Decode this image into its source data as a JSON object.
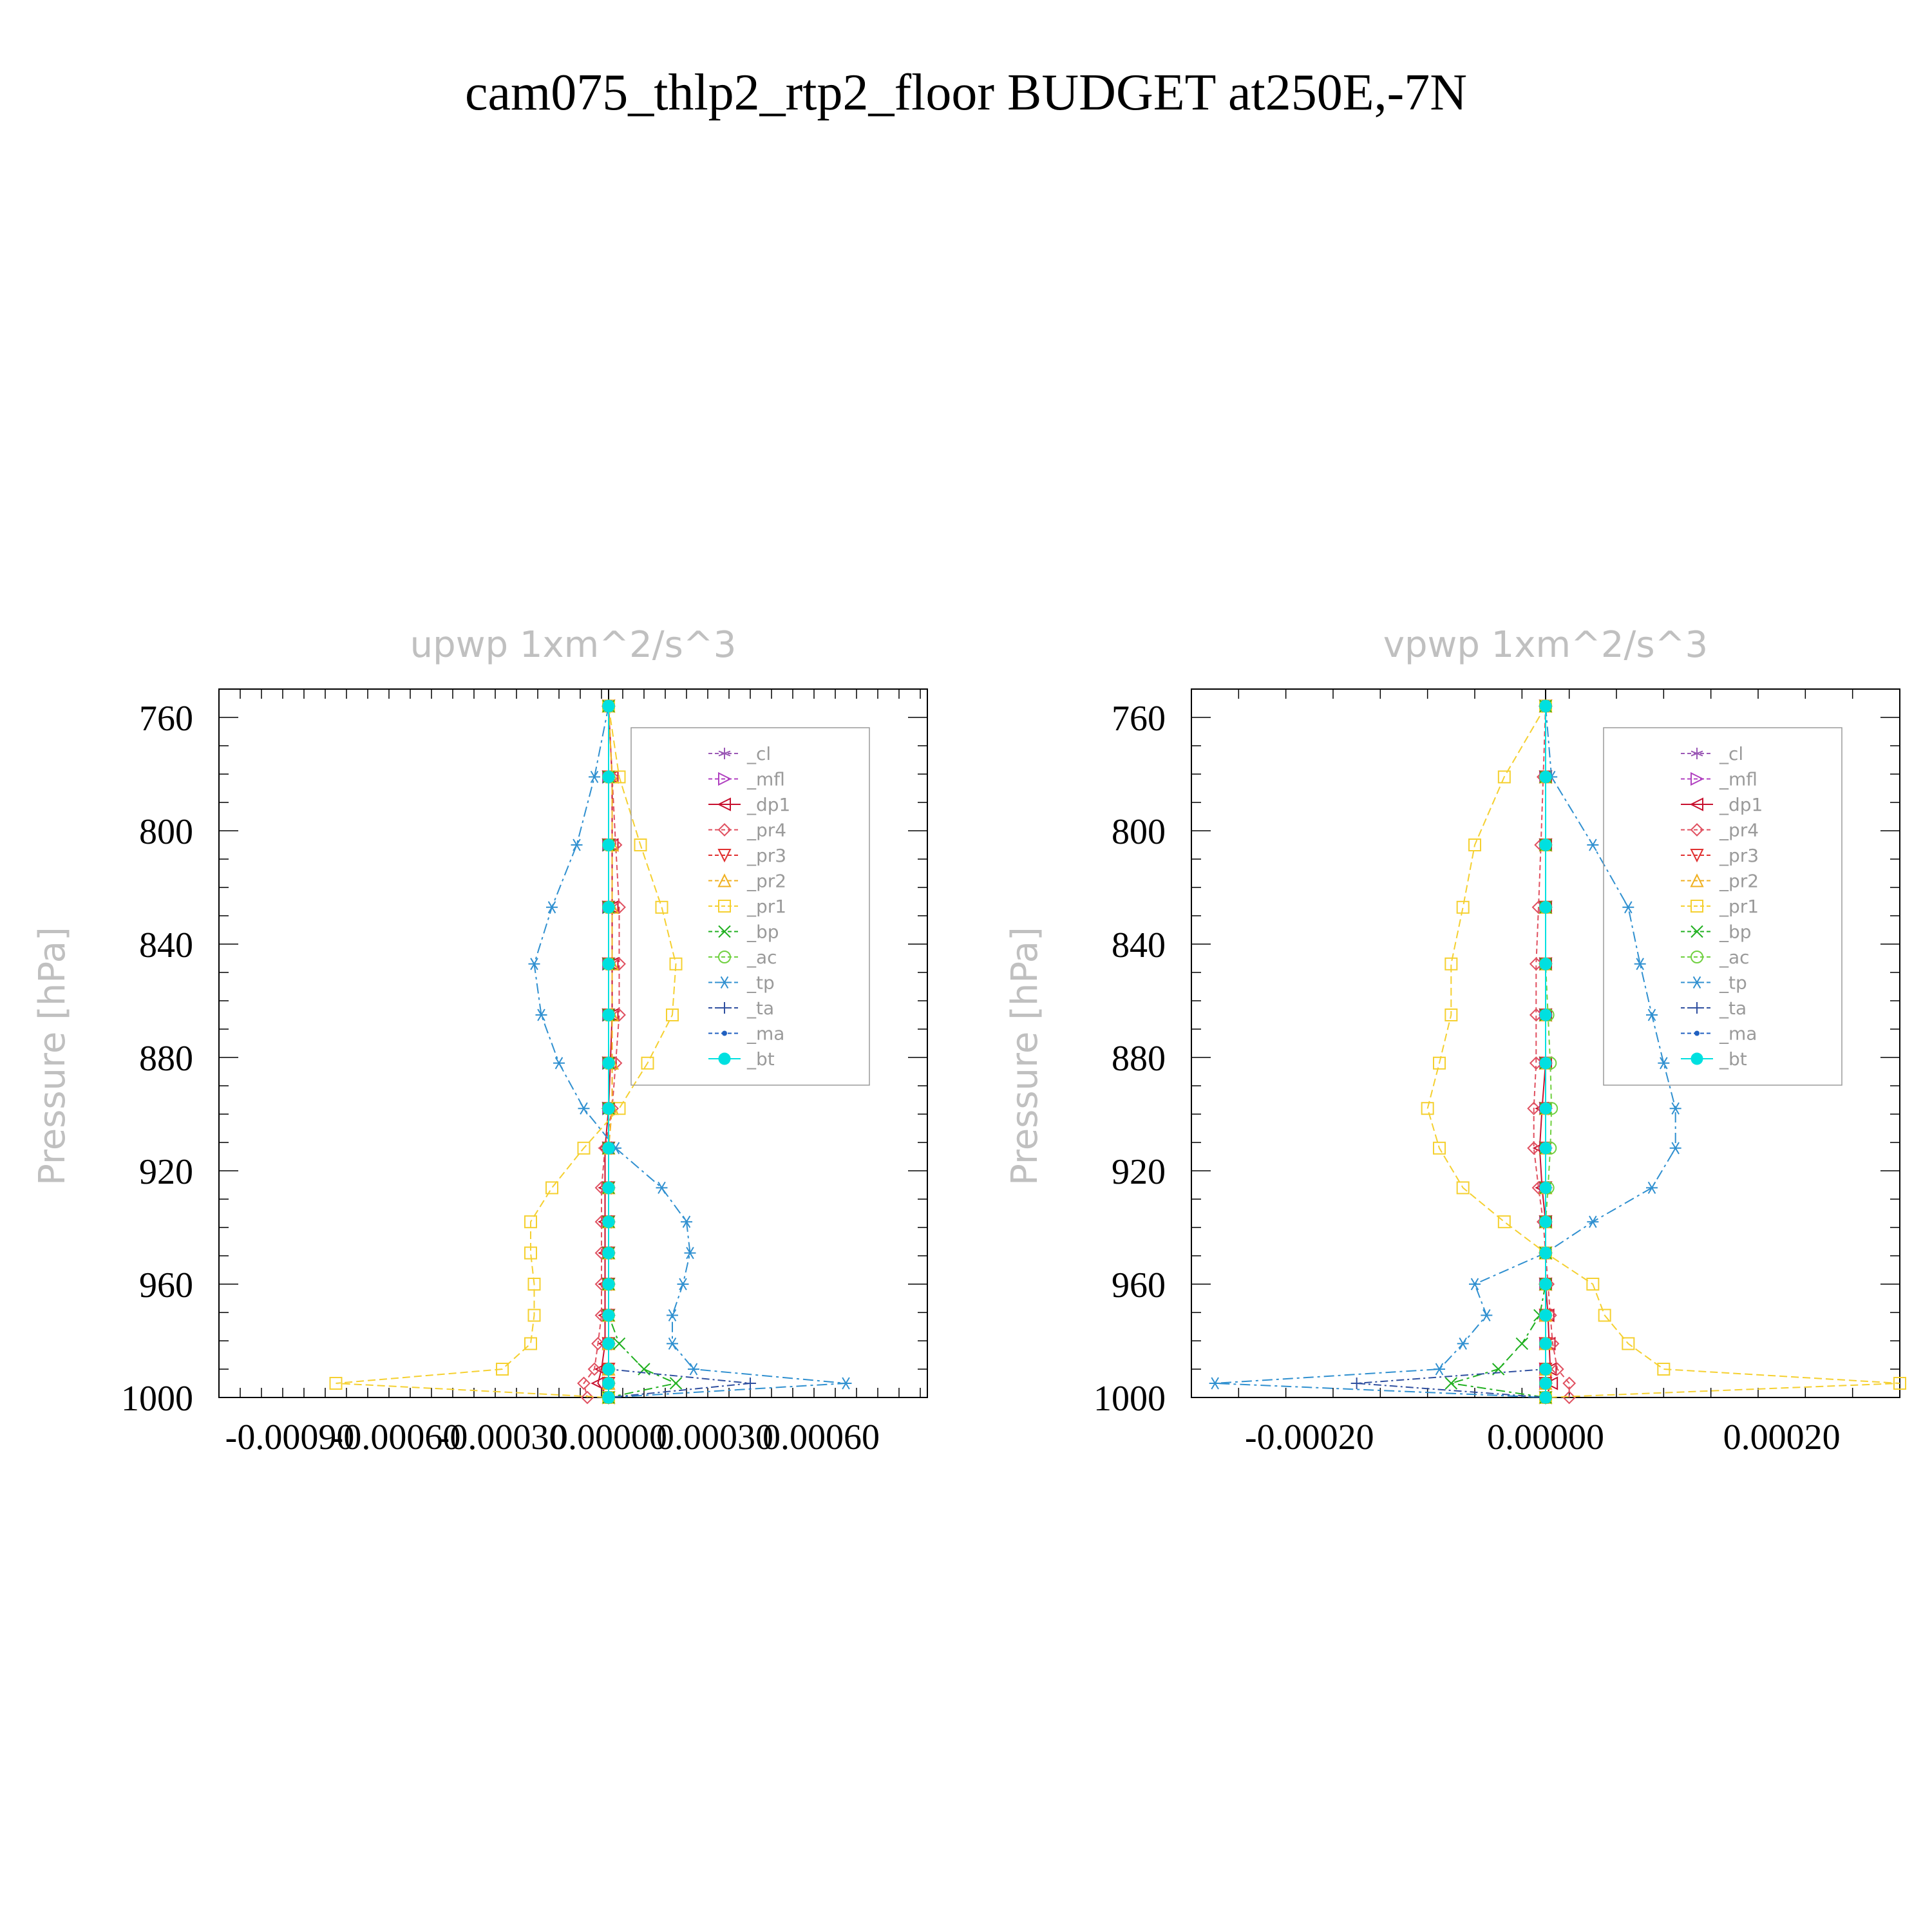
{
  "title": "cam075_thlp2_rtp2_floor  BUDGET at250E,-7N",
  "ylabel": "Pressure  [hPa]",
  "colors": {
    "_cl": "#9b59b6",
    "_mfl": "#b040c0",
    "_dp1": "#c8102e",
    "_pr4": "#e05060",
    "_pr3": "#e03030",
    "_pr2": "#f0b020",
    "_pr1": "#f5d030",
    "_bp": "#20b020",
    "_ac": "#70d040",
    "_tp": "#3090d0",
    "_ta": "#3050a0",
    "_ma": "#2060c0",
    "_bt": "#00e0e0"
  },
  "chart_data": [
    {
      "type": "line",
      "title": "upwp    1xm^2/s^3",
      "xlabel": "",
      "ylabel": "Pressure  [hPa]",
      "xlim": [
        -0.0011,
        0.0009
      ],
      "ylim": [
        750,
        1000
      ],
      "xticks": [
        "-0.00090",
        "-0.00060",
        "-0.00030",
        "0.00000",
        "0.00030",
        "0.00060"
      ],
      "xtick_values": [
        -0.0009,
        -0.0006,
        -0.0003,
        0.0,
        0.0003,
        0.0006
      ],
      "yticks": [
        "760",
        "800",
        "840",
        "880",
        "920",
        "960",
        "1000"
      ],
      "ytick_values": [
        760,
        800,
        840,
        880,
        920,
        960,
        1000
      ],
      "grid": false,
      "legend_position": "top-right",
      "y": [
        756,
        781,
        805,
        827,
        847,
        865,
        882,
        898,
        912,
        926,
        938,
        949,
        960,
        971,
        981,
        990,
        995,
        1000
      ],
      "series": [
        {
          "name": "_cl",
          "values": [
            0,
            0,
            0,
            0,
            0,
            0,
            0,
            0,
            0,
            0,
            0,
            0,
            0,
            0,
            0,
            0,
            0,
            0
          ]
        },
        {
          "name": "_mfl",
          "values": [
            0,
            0,
            0,
            0,
            0,
            0,
            0,
            0,
            0,
            0,
            0,
            0,
            0,
            0,
            0,
            0,
            0,
            0
          ]
        },
        {
          "name": "_dp1",
          "values": [
            0,
            1e-05,
            1e-05,
            1e-05,
            1e-05,
            1e-05,
            5e-06,
            0,
            -1e-05,
            -1e-05,
            -1e-05,
            -1e-05,
            -1e-05,
            -1e-05,
            -1e-05,
            -2e-05,
            -3e-05,
            0
          ]
        },
        {
          "name": "_pr4",
          "values": [
            0,
            1e-05,
            2e-05,
            3e-05,
            3e-05,
            3e-05,
            2e-05,
            1e-05,
            -1e-05,
            -2e-05,
            -2e-05,
            -2e-05,
            -2e-05,
            -2e-05,
            -3e-05,
            -4e-05,
            -7e-05,
            -6e-05
          ]
        },
        {
          "name": "_pr3",
          "values": [
            0,
            0,
            0,
            0,
            0,
            0,
            0,
            0,
            0,
            0,
            0,
            0,
            0,
            0,
            0,
            0,
            0,
            0
          ]
        },
        {
          "name": "_pr2",
          "values": [
            0,
            1e-05,
            1e-05,
            1e-05,
            1e-05,
            1e-05,
            1e-05,
            1e-05,
            0,
            0,
            0,
            0,
            0,
            0,
            0,
            0,
            0,
            0
          ]
        },
        {
          "name": "_pr1",
          "values": [
            0,
            3e-05,
            9e-05,
            0.00015,
            0.00019,
            0.00018,
            0.00011,
            3e-05,
            -7e-05,
            -0.00016,
            -0.00022,
            -0.00022,
            -0.00021,
            -0.00021,
            -0.00022,
            -0.0003,
            -0.00077,
            0
          ]
        },
        {
          "name": "_bp",
          "values": [
            0,
            0,
            0,
            0,
            0,
            0,
            0,
            0,
            0,
            0,
            0,
            0,
            0,
            0,
            3e-05,
            0.0001,
            0.00019,
            0
          ]
        },
        {
          "name": "_ac",
          "values": [
            0,
            0,
            0,
            0,
            0,
            0,
            0,
            0,
            0,
            0,
            0,
            0,
            0,
            0,
            0,
            0,
            0,
            0
          ]
        },
        {
          "name": "_tp",
          "values": [
            0,
            -4e-05,
            -9e-05,
            -0.00016,
            -0.00021,
            -0.00019,
            -0.00014,
            -7e-05,
            2e-05,
            0.00015,
            0.00022,
            0.00023,
            0.00021,
            0.00018,
            0.00018,
            0.00024,
            0.00067,
            0
          ]
        },
        {
          "name": "_ta",
          "values": [
            0,
            0,
            0,
            0,
            0,
            0,
            0,
            0,
            0,
            0,
            0,
            0,
            0,
            0,
            0,
            0,
            0.0004,
            0
          ]
        },
        {
          "name": "_ma",
          "values": [
            0,
            0,
            0,
            0,
            0,
            0,
            0,
            0,
            0,
            0,
            0,
            0,
            0,
            0,
            0,
            0,
            0,
            0
          ]
        },
        {
          "name": "_bt",
          "values": [
            0,
            0,
            0,
            0,
            0,
            0,
            0,
            0,
            0,
            0,
            0,
            0,
            0,
            0,
            0,
            0,
            0,
            0
          ]
        }
      ]
    },
    {
      "type": "line",
      "title": "vpwp    1xm^2/s^3",
      "xlabel": "",
      "ylabel": "Pressure  [hPa]",
      "xlim": [
        -0.0003,
        0.0003
      ],
      "ylim": [
        750,
        1000
      ],
      "xticks": [
        "-0.00020",
        "0.00000",
        "0.00020"
      ],
      "xtick_values": [
        -0.0002,
        0.0,
        0.0002
      ],
      "yticks": [
        "760",
        "800",
        "840",
        "880",
        "920",
        "960",
        "1000"
      ],
      "ytick_values": [
        760,
        800,
        840,
        880,
        920,
        960,
        1000
      ],
      "grid": false,
      "legend_position": "top-right",
      "y": [
        756,
        781,
        805,
        827,
        847,
        865,
        882,
        898,
        912,
        926,
        938,
        949,
        960,
        971,
        981,
        990,
        995,
        1000
      ],
      "series": [
        {
          "name": "_cl",
          "values": [
            0,
            0,
            0,
            0,
            0,
            0,
            0,
            0,
            0,
            0,
            0,
            0,
            0,
            0,
            0,
            0,
            0,
            0
          ]
        },
        {
          "name": "_mfl",
          "values": [
            0,
            0,
            0,
            0,
            0,
            0,
            0,
            0,
            0,
            0,
            0,
            0,
            0,
            0,
            0,
            0,
            0,
            0
          ]
        },
        {
          "name": "_dp1",
          "values": [
            0,
            0,
            0,
            0,
            0,
            0,
            0,
            -3e-06,
            -5e-06,
            -3e-06,
            0,
            0,
            0,
            2e-06,
            3e-06,
            4e-06,
            5e-06,
            0
          ]
        },
        {
          "name": "_pr4",
          "values": [
            0,
            -2e-06,
            -4e-06,
            -6e-06,
            -8e-06,
            -8e-06,
            -8e-06,
            -1e-05,
            -1e-05,
            -6e-06,
            -2e-06,
            0,
            2e-06,
            4e-06,
            6e-06,
            1e-05,
            2e-05,
            2e-05
          ]
        },
        {
          "name": "_pr3",
          "values": [
            0,
            0,
            0,
            0,
            0,
            0,
            0,
            0,
            0,
            0,
            0,
            0,
            0,
            0,
            0,
            0,
            0,
            0
          ]
        },
        {
          "name": "_pr2",
          "values": [
            0,
            0,
            0,
            0,
            0,
            0,
            0,
            0,
            0,
            0,
            0,
            0,
            0,
            0,
            0,
            0,
            0,
            0
          ]
        },
        {
          "name": "_pr1",
          "values": [
            0,
            -3.5e-05,
            -6e-05,
            -7e-05,
            -8e-05,
            -8e-05,
            -9e-05,
            -0.0001,
            -9e-05,
            -7e-05,
            -3.5e-05,
            0,
            4e-05,
            5e-05,
            7e-05,
            0.0001,
            0.0003,
            0
          ]
        },
        {
          "name": "_bp",
          "values": [
            0,
            0,
            0,
            0,
            0,
            0,
            0,
            0,
            0,
            0,
            0,
            0,
            0,
            -5e-06,
            -2e-05,
            -4e-05,
            -8e-05,
            0
          ]
        },
        {
          "name": "_ac",
          "values": [
            0,
            0,
            0,
            0,
            0,
            2e-06,
            4e-06,
            5e-06,
            4e-06,
            2e-06,
            0,
            0,
            0,
            0,
            0,
            0,
            0,
            0
          ]
        },
        {
          "name": "_tp",
          "values": [
            0,
            5e-06,
            4e-05,
            7e-05,
            8e-05,
            9e-05,
            0.0001,
            0.00011,
            0.00011,
            9e-05,
            4e-05,
            0,
            -6e-05,
            -5e-05,
            -7e-05,
            -9e-05,
            -0.00028,
            0
          ]
        },
        {
          "name": "_ta",
          "values": [
            0,
            0,
            0,
            0,
            0,
            0,
            0,
            0,
            0,
            0,
            0,
            0,
            0,
            0,
            0,
            0,
            -0.00016,
            0
          ]
        },
        {
          "name": "_ma",
          "values": [
            0,
            0,
            0,
            0,
            0,
            0,
            0,
            0,
            0,
            0,
            0,
            0,
            0,
            0,
            0,
            0,
            0,
            0
          ]
        },
        {
          "name": "_bt",
          "values": [
            0,
            0,
            0,
            0,
            0,
            0,
            0,
            0,
            0,
            0,
            0,
            0,
            0,
            0,
            0,
            0,
            0,
            0
          ]
        }
      ]
    }
  ]
}
